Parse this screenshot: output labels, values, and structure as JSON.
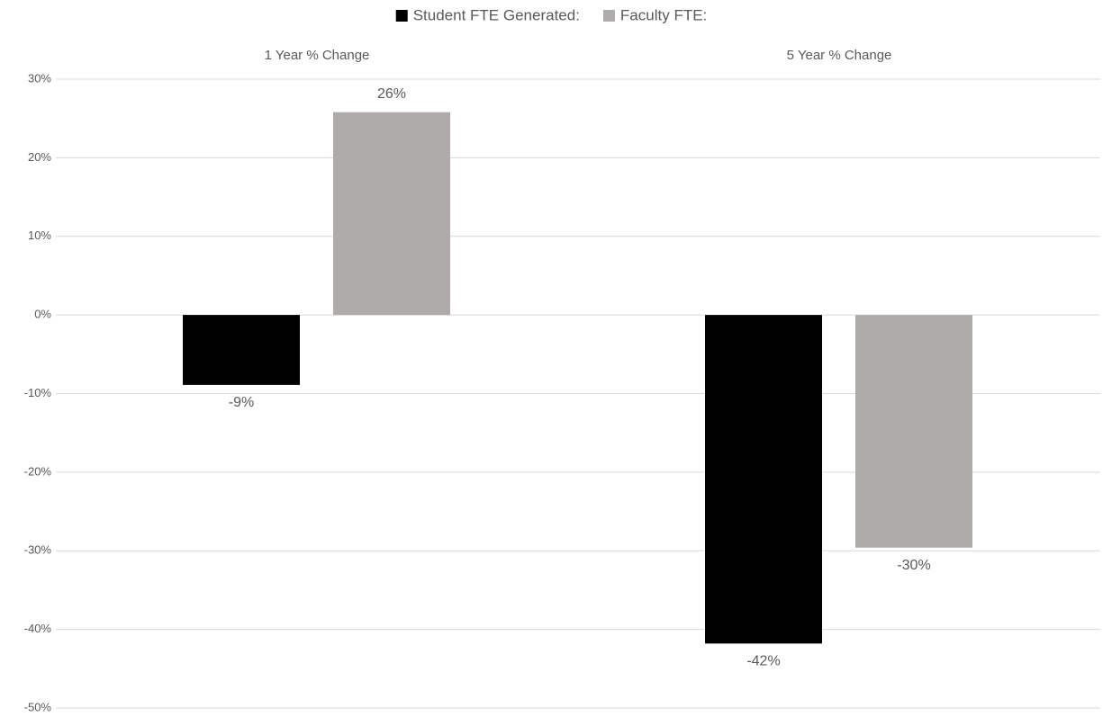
{
  "chart_data": {
    "type": "bar",
    "categories": [
      "1 Year % Change",
      "5 Year % Change"
    ],
    "series": [
      {
        "name": "Student FTE Generated:",
        "color": "#000000",
        "values": [
          -8.9,
          -41.8
        ],
        "value_labels": [
          "-9%",
          "-42%"
        ]
      },
      {
        "name": "Faculty FTE:",
        "color": "#afabab",
        "values": [
          25.8,
          -29.6
        ],
        "value_labels": [
          "26%",
          "-30%"
        ]
      }
    ],
    "ylim": [
      -50,
      30
    ],
    "yticks": [
      {
        "value": -50,
        "label": "-50%"
      },
      {
        "value": -40,
        "label": "-40%"
      },
      {
        "value": -30,
        "label": "-30%"
      },
      {
        "value": -20,
        "label": "-20%"
      },
      {
        "value": -10,
        "label": "-10%"
      },
      {
        "value": 0,
        "label": "0%"
      },
      {
        "value": 10,
        "label": "10%"
      },
      {
        "value": 20,
        "label": "20%"
      },
      {
        "value": 30,
        "label": "30%"
      }
    ],
    "grid": true,
    "legend": "top"
  }
}
